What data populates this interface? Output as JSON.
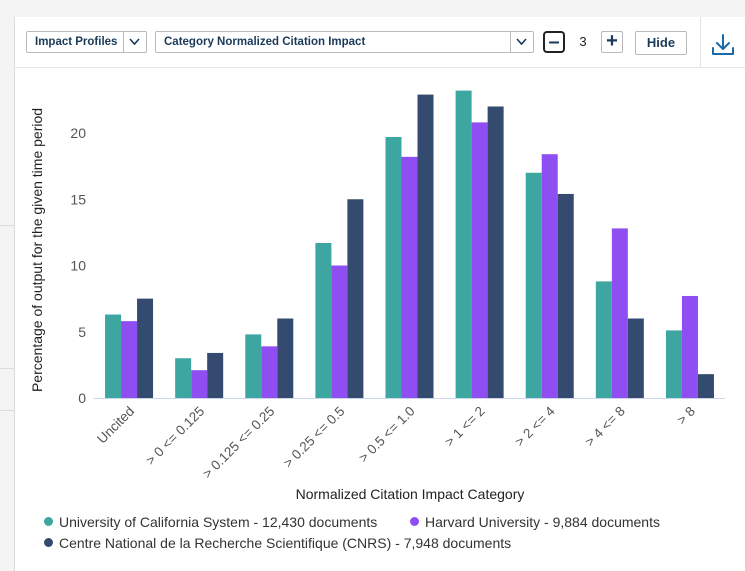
{
  "toolbar": {
    "profile_select": "Impact Profiles",
    "indicator_select": "Category Normalized Citation Impact",
    "stepper_value": "3",
    "stepper_minus": "–",
    "stepper_plus": "+",
    "hide_label": "Hide",
    "download_icon": "download-icon"
  },
  "chart_data": {
    "type": "bar",
    "xlabel": "Normalized Citation Impact Category",
    "ylabel": "Percentage of output for the given time period",
    "ylim": [
      0,
      24
    ],
    "yticks": [
      0,
      5,
      10,
      15,
      20
    ],
    "grid": false,
    "legend_position": "bottom",
    "categories": [
      "Uncited",
      "> 0 <= 0.125",
      "> 0.125 <= 0.25",
      "> 0.25 <= 0.5",
      "> 0.5 <= 1.0",
      "> 1 <= 2",
      "> 2 <= 4",
      "> 4 <= 8",
      "> 8"
    ],
    "series": [
      {
        "name": "University of California System - 12,430 documents",
        "color": "#3ea6a1",
        "values": [
          6.3,
          3.0,
          4.8,
          11.7,
          19.7,
          23.2,
          17.0,
          8.8,
          5.1
        ]
      },
      {
        "name": "Harvard University - 9,884 documents",
        "color": "#8f4ef2",
        "values": [
          5.8,
          2.1,
          3.9,
          10.0,
          18.2,
          20.8,
          18.4,
          12.8,
          7.7
        ]
      },
      {
        "name": "Centre National de la Recherche Scientifique (CNRS) - 7,948 documents",
        "color": "#344b6f",
        "values": [
          7.5,
          3.4,
          6.0,
          15.0,
          22.9,
          22.0,
          15.4,
          6.0,
          1.8
        ]
      }
    ]
  }
}
